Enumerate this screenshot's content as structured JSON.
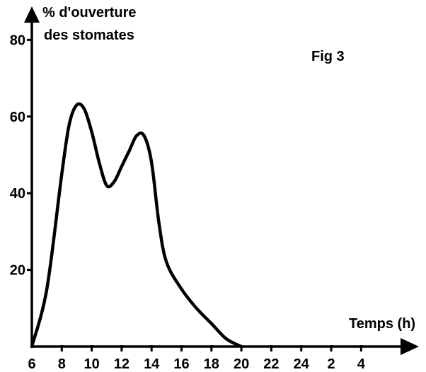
{
  "chart_data": {
    "type": "line",
    "title": "Fig 3",
    "ylabel_line1": "% d'ouverture",
    "ylabel_line2": "des stomates",
    "xlabel": "Temps (h)",
    "x_tick_labels": [
      "6",
      "8",
      "10",
      "12",
      "14",
      "16",
      "18",
      "20",
      "22",
      "24",
      "2",
      "4"
    ],
    "y_tick_labels": [
      "20",
      "40",
      "60",
      "80"
    ],
    "y_ticks": [
      20,
      40,
      60,
      80
    ],
    "xlim": [
      6,
      30
    ],
    "ylim": [
      0,
      80
    ],
    "grid": false,
    "series": [
      {
        "x": [
          6,
          7,
          8,
          8.5,
          9,
          9.5,
          10,
          10.5,
          11,
          11.5,
          12,
          12.5,
          13,
          13.5,
          14,
          14.5,
          15,
          16,
          17,
          18,
          19,
          20
        ],
        "y": [
          0,
          15,
          45,
          58,
          63,
          62,
          56,
          48,
          42,
          43,
          47,
          51,
          55,
          55,
          48,
          32,
          22,
          15,
          10,
          6,
          2,
          0
        ]
      }
    ],
    "colors": {
      "axis": "#000000",
      "line": "#000000"
    }
  }
}
